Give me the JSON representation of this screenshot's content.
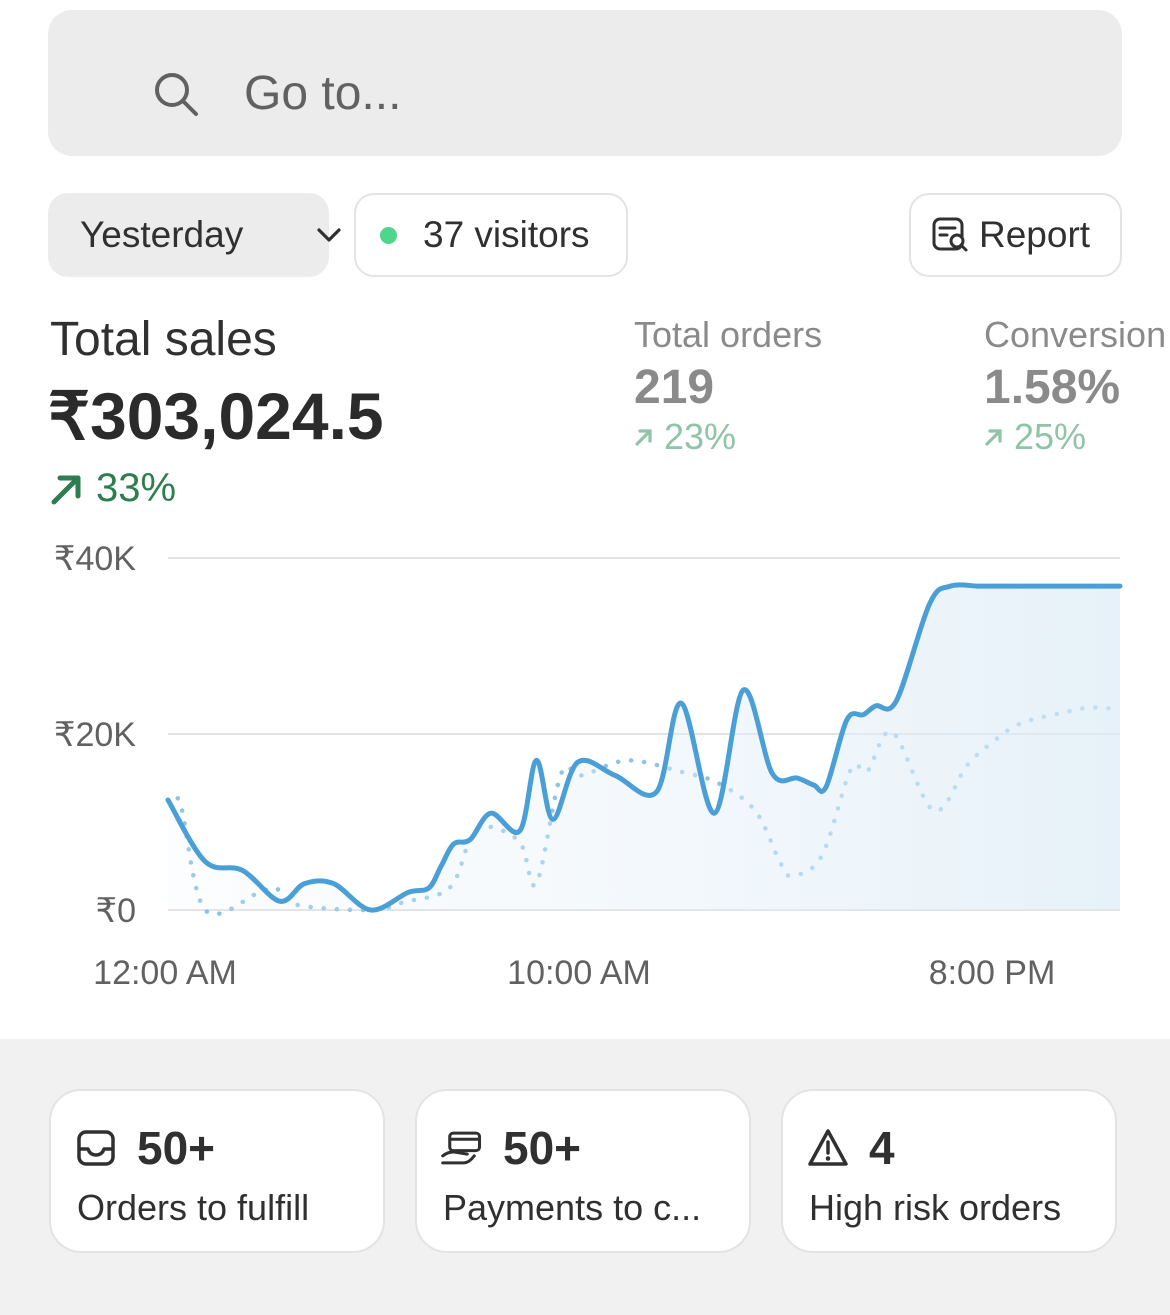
{
  "search": {
    "placeholder": "Go to...",
    "icon": "search-icon"
  },
  "filters": {
    "date_label": "Yesterday",
    "visitors_label": "37 visitors",
    "visitors_dot_color": "#4ed68a",
    "report_label": "Report"
  },
  "metrics": {
    "total_sales": {
      "label": "Total sales",
      "value": "₹303,024.5",
      "change": "33%"
    },
    "total_orders": {
      "label": "Total orders",
      "value": "219",
      "change": "23%"
    },
    "conversion": {
      "label": "Conversion",
      "value": "1.58%",
      "change": "25%"
    }
  },
  "chart_data": {
    "type": "line",
    "y_ticks": [
      "₹40K",
      "₹20K",
      "₹0"
    ],
    "x_ticks": [
      "12:00 AM",
      "10:00 AM",
      "8:00 PM"
    ],
    "ylim": [
      0,
      40000
    ],
    "xlim": [
      0,
      23
    ],
    "grid": true,
    "series": [
      {
        "style": "solid",
        "color": "#4a9fd6",
        "x": [
          0,
          0.9,
          1.8,
          2.7,
          3.3,
          4.0,
          4.9,
          5.8,
          6.3,
          6.6,
          6.9,
          7.3,
          7.8,
          8.5,
          8.9,
          9.3,
          9.9,
          10.8,
          11.8,
          12.4,
          13.2,
          13.9,
          14.6,
          15.2,
          15.6,
          15.9,
          16.4,
          16.8,
          17.1,
          17.6,
          18.4,
          18.9,
          19.6,
          20.1,
          20.8,
          21.5,
          21.9,
          22.3,
          22.7,
          23.0
        ],
        "y": [
          12500,
          5500,
          4500,
          1000,
          3000,
          3000,
          0,
          2000,
          2500,
          5000,
          7500,
          8000,
          11000,
          9000,
          17000,
          10300,
          16800,
          15300,
          13400,
          23500,
          11000,
          25000,
          15500,
          15000,
          14200,
          14000,
          21600,
          22200,
          23200,
          23800,
          34800,
          36800,
          36800,
          36800,
          36800,
          36800,
          36800,
          36800,
          36800,
          36800
        ]
      },
      {
        "style": "dotted",
        "color": "#8cc3e6",
        "x": [
          0,
          0.3,
          0.9,
          2.2,
          2.6,
          3.1,
          4.9,
          5.7,
          6.8,
          7.3,
          7.7,
          8.5,
          8.9,
          9.5,
          10.0,
          11.1,
          12.4,
          13.3,
          14.2,
          14.8,
          15.1,
          15.8,
          16.5,
          16.9,
          17.5,
          18.5,
          19.3,
          19.9,
          20.6,
          21.7,
          22.3,
          23.0
        ],
        "y": [
          12500,
          12000,
          0,
          2000,
          2500,
          600,
          0,
          900,
          2500,
          8000,
          9500,
          7700,
          3000,
          15500,
          15300,
          17000,
          15700,
          14400,
          11200,
          5300,
          3900,
          6200,
          16000,
          15800,
          20200,
          11300,
          16400,
          19000,
          21200,
          22500,
          23000,
          22800
        ]
      }
    ]
  },
  "tasks": [
    {
      "icon": "inbox-icon",
      "value": "50+",
      "label": "Orders to fulfill"
    },
    {
      "icon": "payment-hand-icon",
      "value": "50+",
      "label": "Payments to c..."
    },
    {
      "icon": "warning-triangle-icon",
      "value": "4",
      "label": "High risk orders"
    }
  ]
}
